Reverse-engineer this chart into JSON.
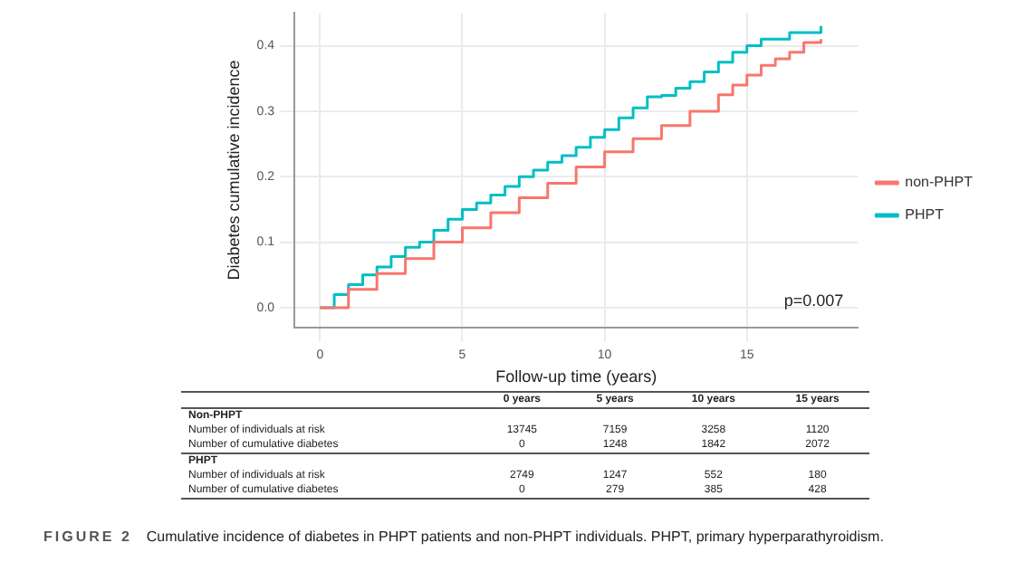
{
  "chart_data": {
    "type": "step",
    "xlabel": "Follow-up time (years)",
    "ylabel": "Diabetes cumulative incidence",
    "xlim": [
      -0.9,
      18.9
    ],
    "xticks": [
      0,
      5,
      10,
      15
    ],
    "ylim": [
      -0.03,
      0.45
    ],
    "yticks": [
      {
        "value": 0,
        "label": "0.0"
      },
      0.1,
      0.2,
      0.3,
      0.4
    ],
    "grid": true,
    "legend": "right",
    "marker": "none",
    "line_style": "solid",
    "series": [
      {
        "name": "non-PHPT",
        "color": "#f8766d",
        "x": [
          0,
          1,
          2,
          3,
          4,
          5,
          6,
          7,
          8,
          9,
          10,
          11,
          12,
          13,
          14,
          14.5,
          15,
          15.5,
          16,
          16.5,
          17,
          17.6
        ],
        "values": [
          0,
          0.028,
          0.052,
          0.075,
          0.1,
          0.122,
          0.145,
          0.168,
          0.19,
          0.215,
          0.238,
          0.258,
          0.278,
          0.3,
          0.325,
          0.34,
          0.355,
          0.37,
          0.38,
          0.39,
          0.405,
          0.41
        ]
      },
      {
        "name": "PHPT",
        "color": "#00bfc4",
        "x": [
          0,
          0.5,
          1,
          1.5,
          2,
          2.5,
          3,
          3.5,
          4,
          4.5,
          5,
          5.5,
          6,
          6.5,
          7,
          7.5,
          8,
          8.5,
          9,
          9.5,
          10,
          10.5,
          11,
          11.5,
          12,
          12.5,
          13,
          13.5,
          14,
          14.5,
          15,
          15.5,
          16,
          16.5,
          17,
          17.6
        ],
        "values": [
          0,
          0.02,
          0.035,
          0.05,
          0.062,
          0.078,
          0.092,
          0.1,
          0.118,
          0.135,
          0.15,
          0.16,
          0.172,
          0.185,
          0.2,
          0.21,
          0.222,
          0.232,
          0.245,
          0.26,
          0.272,
          0.29,
          0.305,
          0.322,
          0.324,
          0.335,
          0.345,
          0.36,
          0.375,
          0.39,
          0.4,
          0.41,
          0.41,
          0.42,
          0.42,
          0.43
        ]
      }
    ],
    "annotations": [
      "p=0.007",
      "FIGURE 2",
      "Cumulative incidence of diabetes in PHPT patients and non-PHPT individuals. PHPT, primary hyperparathyroidism.",
      "0 years",
      "5 years",
      "10 years",
      "15 years",
      "Non-PHPT",
      "Number of individuals at risk",
      "13745",
      "7159",
      "3258",
      "1120",
      "Number of cumulative diabetes",
      "0",
      "1248",
      "1842",
      "2072",
      "PHPT",
      "Number of individuals at risk",
      "2749",
      "1247",
      "552",
      "180",
      "Number of cumulative diabetes",
      "0",
      "279",
      "385",
      "428"
    ]
  }
}
